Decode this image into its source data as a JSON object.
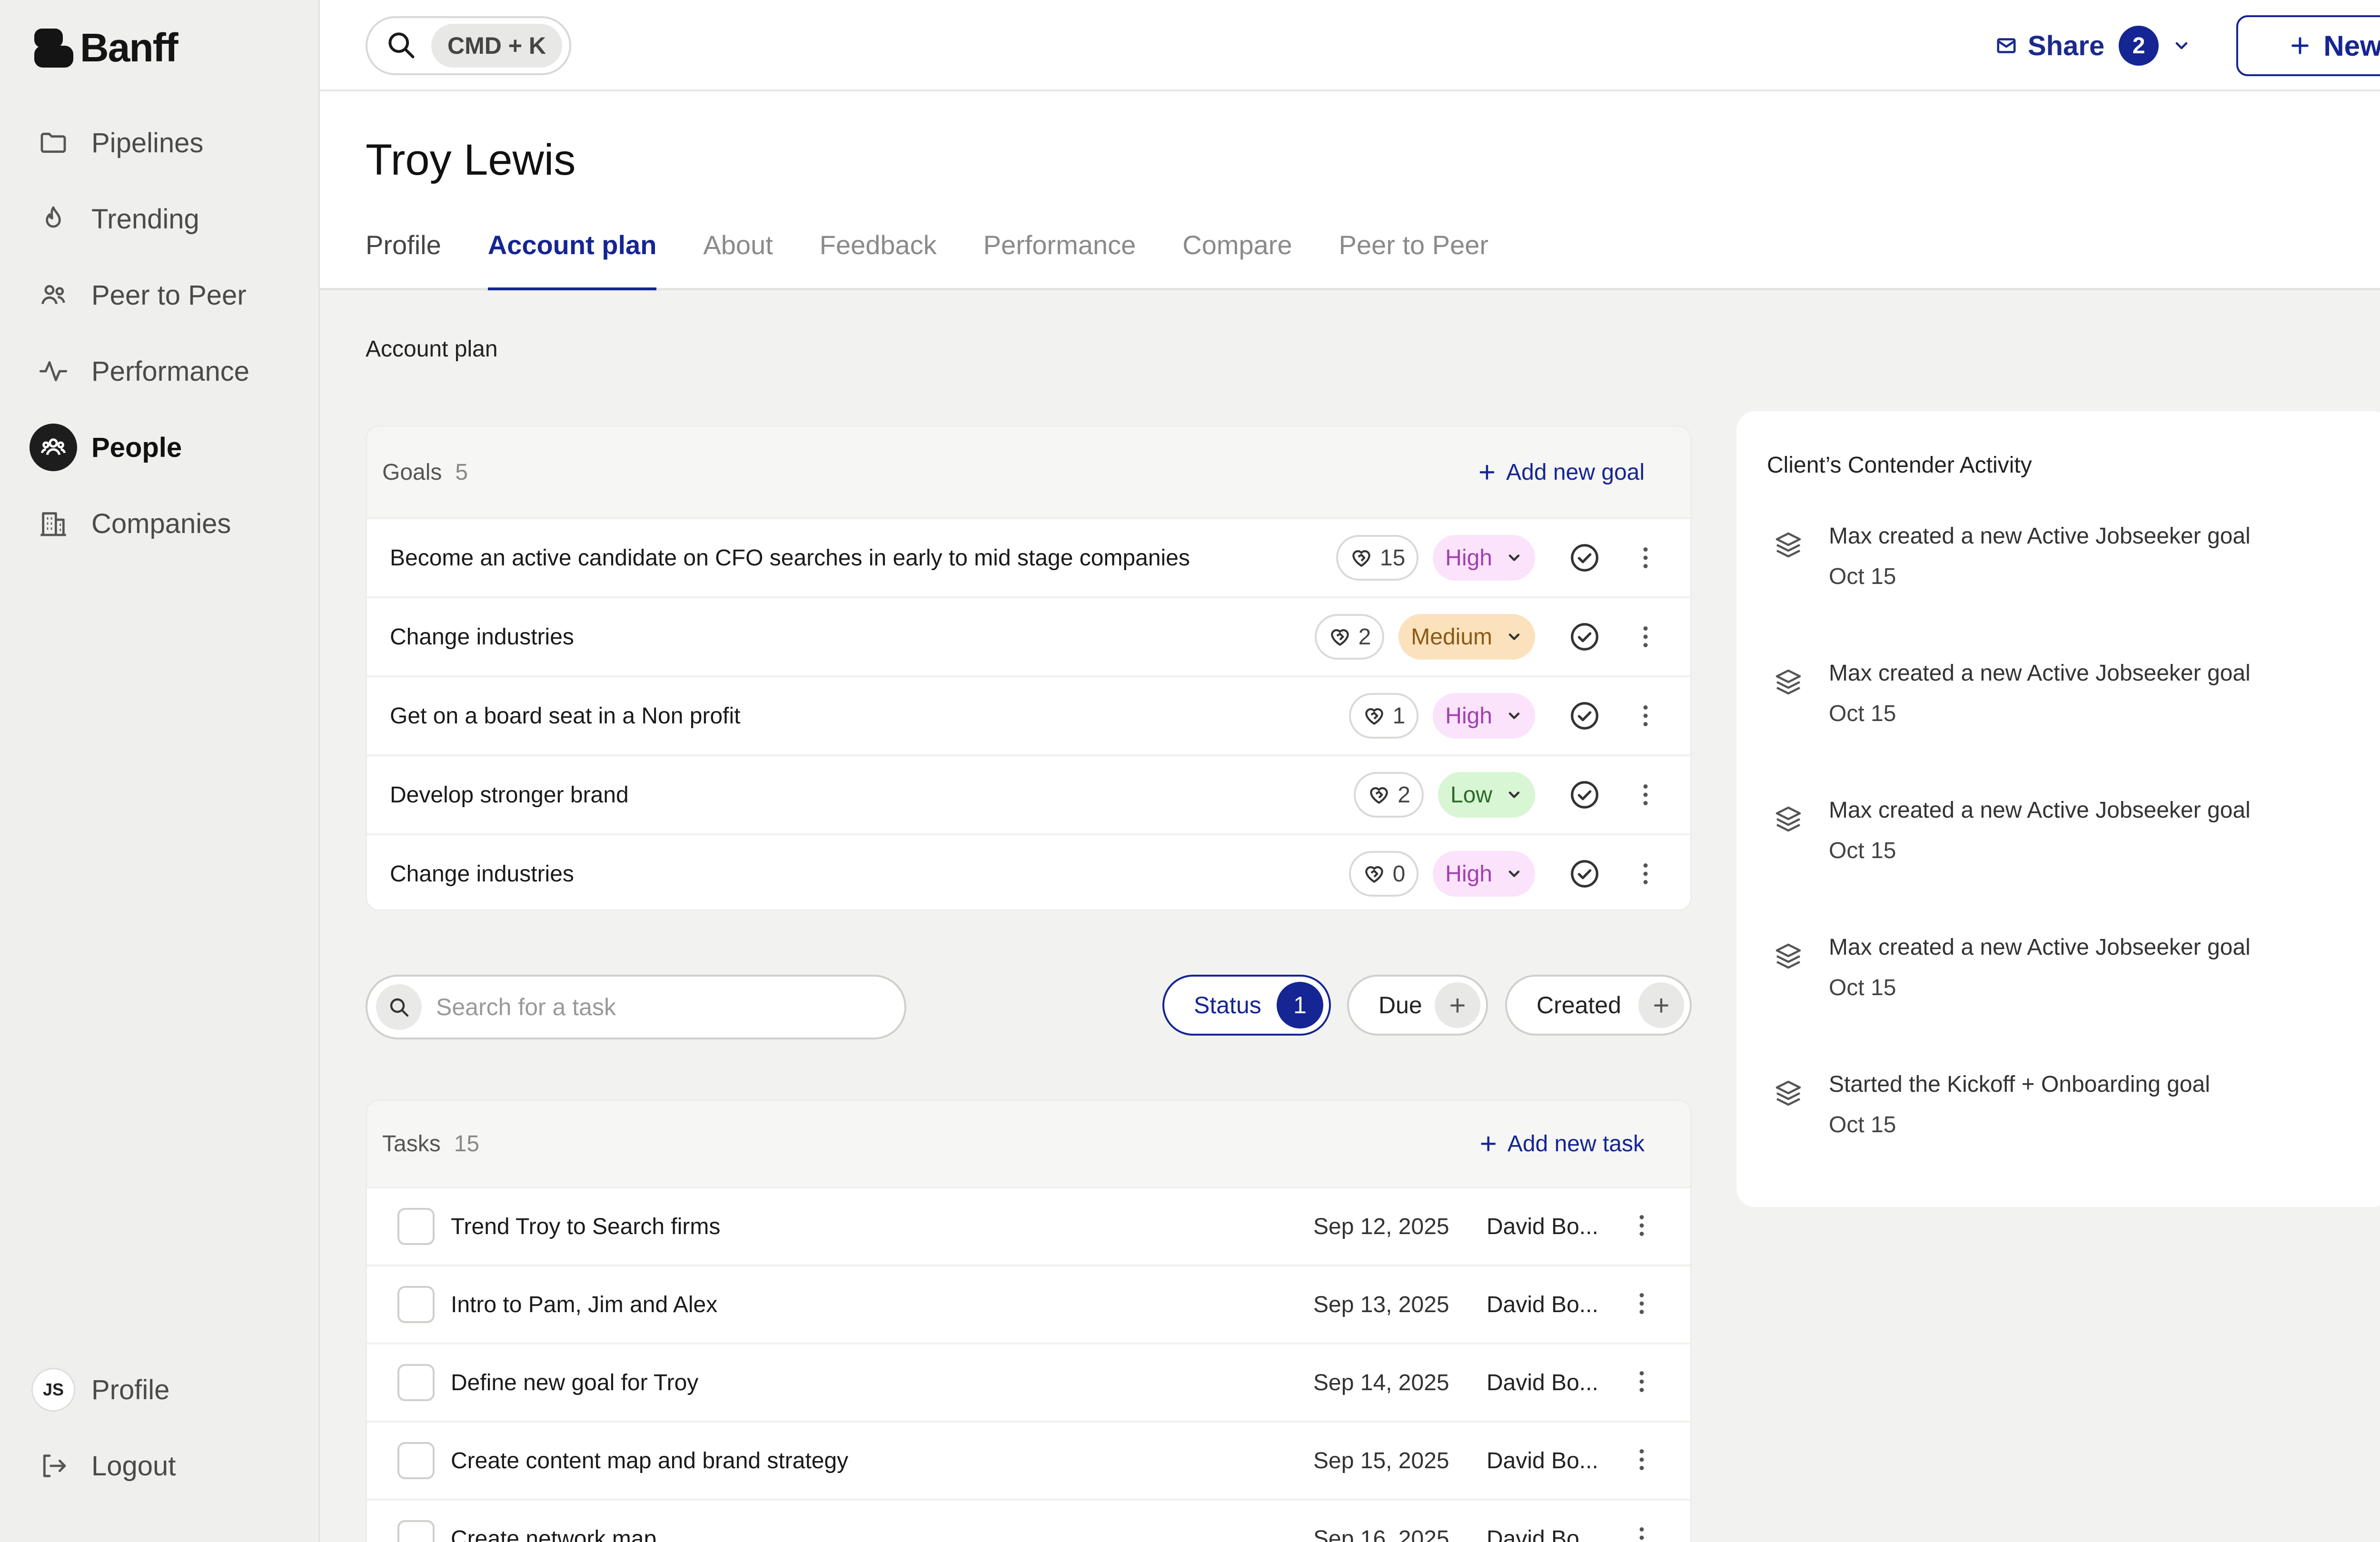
{
  "app": {
    "name": "Banff"
  },
  "sidebar": {
    "items": [
      {
        "label": "Pipelines",
        "icon": "folder-icon"
      },
      {
        "label": "Trending",
        "icon": "flame-icon"
      },
      {
        "label": "Peer to Peer",
        "icon": "people-icon"
      },
      {
        "label": "Performance",
        "icon": "activity-icon"
      },
      {
        "label": "People",
        "icon": "people-icon",
        "active": true
      },
      {
        "label": "Companies",
        "icon": "building-icon"
      }
    ],
    "profile": {
      "initials": "JS",
      "label": "Profile"
    },
    "logout": {
      "label": "Logout"
    }
  },
  "topbar": {
    "shortcut": "CMD + K",
    "share": {
      "label": "Share",
      "count": "2"
    },
    "new_label": "New"
  },
  "person": {
    "name": "Troy Lewis"
  },
  "tabs": [
    "Profile",
    "Account plan",
    "About",
    "Feedback",
    "Performance",
    "Compare",
    "Peer to Peer"
  ],
  "active_tab": "Account plan",
  "section_label": "Account plan",
  "goals": {
    "title": "Goals",
    "count": "5",
    "add_label": "Add new goal",
    "items": [
      {
        "text": "Become an active candidate on CFO searches in early to mid stage companies",
        "likes": "15",
        "priority": "High"
      },
      {
        "text": "Change industries",
        "likes": "2",
        "priority": "Medium"
      },
      {
        "text": "Get on a board seat in a Non profit",
        "likes": "1",
        "priority": "High"
      },
      {
        "text": "Develop stronger brand",
        "likes": "2",
        "priority": "Low"
      },
      {
        "text": "Change industries",
        "likes": "0",
        "priority": "High"
      }
    ]
  },
  "task_search": {
    "placeholder": "Search for a task"
  },
  "filters": {
    "status": {
      "label": "Status",
      "count": "1"
    },
    "due": {
      "label": "Due"
    },
    "created": {
      "label": "Created"
    }
  },
  "tasks": {
    "title": "Tasks",
    "count": "15",
    "add_label": "Add new task",
    "items": [
      {
        "text": "Trend Troy to Search firms",
        "date": "Sep 12, 2025",
        "owner": "David Bo..."
      },
      {
        "text": "Intro to Pam, Jim and Alex",
        "date": "Sep 13, 2025",
        "owner": "David Bo..."
      },
      {
        "text": "Define new goal for Troy",
        "date": "Sep 14, 2025",
        "owner": "David Bo..."
      },
      {
        "text": "Create content map and brand strategy",
        "date": "Sep 15, 2025",
        "owner": "David Bo..."
      },
      {
        "text": "Create network map",
        "date": "Sep 16, 2025",
        "owner": "David Bo..."
      }
    ]
  },
  "activity": {
    "title": "Client’s Contender Activity",
    "items": [
      {
        "text": "Max created a new Active Jobseeker goal",
        "date": "Oct 15"
      },
      {
        "text": "Max created a new Active Jobseeker goal",
        "date": "Oct 15"
      },
      {
        "text": "Max created a new Active Jobseeker goal",
        "date": "Oct 15"
      },
      {
        "text": "Max created a new Active Jobseeker goal",
        "date": "Oct 15"
      },
      {
        "text": "Started the Kickoff + Onboarding goal",
        "date": "Oct 15"
      }
    ]
  },
  "colors": {
    "accent": "#152593",
    "high_bg": "#fbe3fb",
    "medium_bg": "#fbe2bd",
    "low_bg": "#d8f5d4",
    "page_bg": "#f2f2f0"
  }
}
